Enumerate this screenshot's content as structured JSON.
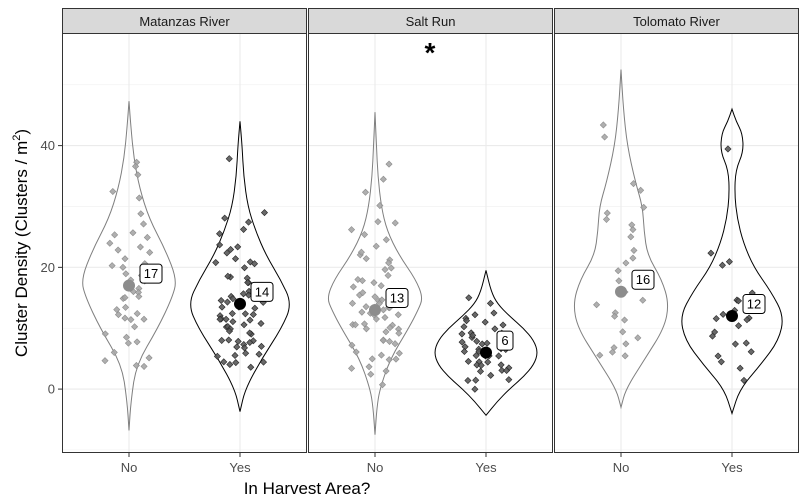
{
  "chart_data": {
    "type": "violin",
    "xlabel": "In Harvest Area?",
    "ylabel": "Cluster Density (Clusters / m",
    "ylabel_superscript": "2",
    "ylabel_close": ")",
    "ylim": [
      -10.5,
      58.5
    ],
    "yticks": [
      0,
      20,
      40
    ],
    "categories": [
      "No",
      "Yes"
    ],
    "grid": true,
    "colors": {
      "no": "#a6a6a6",
      "yes": "#4d4d4d",
      "strip_fill": "#d9d9d9"
    },
    "panels": [
      {
        "title": "Matanzas River",
        "significance": "",
        "groups": [
          {
            "category": "No",
            "median": 17,
            "label": "17",
            "violin": {
              "min": -6.8,
              "max": 47.3,
              "profile": [
                [
                  -6.8,
                  0
                ],
                [
                  -2,
                  0.04
                ],
                [
                  4,
                  0.15
                ],
                [
                  10,
                  0.6
                ],
                [
                  15,
                  0.9
                ],
                [
                  18,
                  1.0
                ],
                [
                  23,
                  0.75
                ],
                [
                  28,
                  0.42
                ],
                [
                  33,
                  0.22
                ],
                [
                  38,
                  0.1
                ],
                [
                  43,
                  0.04
                ],
                [
                  47.3,
                  0
                ]
              ]
            },
            "points": [
              37.5,
              36,
              35,
              32,
              31,
              29,
              27.5,
              26,
              25,
              24.5,
              24,
              23.5,
              23,
              22,
              21.5,
              21,
              20.5,
              20,
              19.5,
              19,
              18.5,
              18,
              17.5,
              17,
              16.5,
              16,
              15.5,
              15,
              14.5,
              14,
              13.5,
              13,
              12.5,
              12,
              11.5,
              11,
              10,
              9,
              8.5,
              8,
              7,
              6,
              5,
              4.5,
              4,
              3.5
            ]
          },
          {
            "category": "Yes",
            "median": 14,
            "label": "14",
            "violin": {
              "min": -3.7,
              "max": 44,
              "profile": [
                [
                  -3.7,
                  0
                ],
                [
                  0,
                  0.1
                ],
                [
                  5,
                  0.42
                ],
                [
                  10,
                  0.8
                ],
                [
                  14,
                  1.0
                ],
                [
                  18,
                  0.78
                ],
                [
                  22,
                  0.5
                ],
                [
                  26,
                  0.3
                ],
                [
                  30,
                  0.15
                ],
                [
                  35,
                  0.07
                ],
                [
                  40,
                  0.04
                ],
                [
                  44,
                  0
                ]
              ]
            },
            "points": [
              37.5,
              29,
              28,
              27,
              26,
              25,
              24,
              23,
              22.5,
              22,
              21.5,
              21,
              20.5,
              20,
              19.5,
              19,
              18.5,
              18,
              17.5,
              17,
              16.5,
              16,
              15.5,
              15,
              15,
              14.5,
              14.5,
              14,
              14,
              13.5,
              13.5,
              13,
              13,
              12.5,
              12.5,
              12,
              12,
              11.5,
              11.5,
              11,
              11,
              10.5,
              10.5,
              10,
              10,
              9.5,
              9.5,
              9,
              9,
              8.5,
              8.5,
              8,
              8,
              7.5,
              7.5,
              7,
              7,
              6.5,
              6,
              6,
              5.5,
              5,
              5,
              4.5,
              4,
              3.5,
              3
            ]
          }
        ]
      },
      {
        "title": "Salt Run",
        "significance": "*",
        "groups": [
          {
            "category": "No",
            "median": 13,
            "label": "13",
            "violin": {
              "min": -7.5,
              "max": 45.5,
              "profile": [
                [
                  -7.5,
                  0
                ],
                [
                  -3,
                  0.04
                ],
                [
                  0,
                  0.1
                ],
                [
                  5,
                  0.32
                ],
                [
                  10,
                  0.7
                ],
                [
                  13,
                  0.9
                ],
                [
                  15,
                  1.0
                ],
                [
                  18,
                  0.85
                ],
                [
                  22,
                  0.5
                ],
                [
                  26,
                  0.25
                ],
                [
                  30,
                  0.13
                ],
                [
                  35,
                  0.06
                ],
                [
                  40,
                  0.03
                ],
                [
                  45.5,
                  0
                ]
              ]
            },
            "points": [
              37,
              34,
              32,
              30,
              28,
              27,
              26,
              25,
              24,
              23,
              22.5,
              22,
              21.5,
              21,
              20.5,
              20,
              19.5,
              19,
              18.5,
              18,
              17.5,
              17,
              16.5,
              16,
              15.5,
              15,
              15,
              14.5,
              14.5,
              14,
              14,
              13.5,
              13.5,
              13,
              13,
              12.5,
              12.5,
              12,
              12,
              11.5,
              11.5,
              11,
              11,
              10.5,
              10.5,
              10,
              10,
              9.5,
              9,
              9,
              8.5,
              8,
              8,
              7.5,
              7,
              6.5,
              6,
              5.5,
              5,
              5,
              4.5,
              4,
              3.5,
              3,
              2,
              1
            ]
          },
          {
            "category": "Yes",
            "median": 6,
            "label": "6",
            "violin": {
              "min": -4.3,
              "max": 19.5,
              "profile": [
                [
                  -4.3,
                  0
                ],
                [
                  -2,
                  0.22
                ],
                [
                  0,
                  0.45
                ],
                [
                  2,
                  0.72
                ],
                [
                  4,
                  0.92
                ],
                [
                  6,
                  1.0
                ],
                [
                  8,
                  0.92
                ],
                [
                  10,
                  0.72
                ],
                [
                  12,
                  0.45
                ],
                [
                  14,
                  0.22
                ],
                [
                  16,
                  0.1
                ],
                [
                  19.5,
                  0
                ]
              ]
            },
            "points": [
              15.5,
              14,
              13,
              12.5,
              12,
              11.5,
              11,
              10.5,
              10,
              10,
              9.5,
              9,
              9,
              8.5,
              8.5,
              8,
              8,
              7.5,
              7.5,
              7,
              7,
              7,
              6.5,
              6.5,
              6,
              6,
              6,
              5.5,
              5.5,
              5,
              5,
              5,
              4.5,
              4.5,
              4,
              4,
              3.5,
              3.5,
              3,
              3,
              2.5,
              2,
              2,
              1.5,
              1,
              0.5
            ]
          }
        ]
      },
      {
        "title": "Tolomato River",
        "significance": "",
        "groups": [
          {
            "category": "No",
            "median": 16,
            "label": "16",
            "violin": {
              "min": -3,
              "max": 52.5,
              "profile": [
                [
                  -3,
                  0
                ],
                [
                  0,
                  0.1
                ],
                [
                  5,
                  0.5
                ],
                [
                  10,
                  0.9
                ],
                [
                  14,
                  1.0
                ],
                [
                  18,
                  0.85
                ],
                [
                  22,
                  0.55
                ],
                [
                  26,
                  0.48
                ],
                [
                  30,
                  0.45
                ],
                [
                  34,
                  0.3
                ],
                [
                  40,
                  0.13
                ],
                [
                  46,
                  0.05
                ],
                [
                  52.5,
                  0
                ]
              ]
            },
            "points": [
              43,
              42,
              34,
              33,
              30,
              29,
              28,
              27,
              26,
              24.5,
              23,
              22,
              21,
              20,
              19,
              18,
              17.5,
              16.5,
              15,
              14,
              13,
              12,
              11,
              10,
              9,
              8,
              7,
              6,
              5.5,
              5
            ]
          },
          {
            "category": "Yes",
            "median": 12,
            "label": "12",
            "violin": {
              "min": -4,
              "max": 46,
              "profile": [
                [
                  -4,
                  0
                ],
                [
                  0,
                  0.15
                ],
                [
                  4,
                  0.55
                ],
                [
                  8,
                  0.9
                ],
                [
                  12,
                  1.0
                ],
                [
                  16,
                  0.75
                ],
                [
                  20,
                  0.42
                ],
                [
                  24,
                  0.22
                ],
                [
                  28,
                  0.1
                ],
                [
                  32,
                  0.05
                ],
                [
                  36,
                  0.07
                ],
                [
                  39,
                  0.22
                ],
                [
                  42,
                  0.2
                ],
                [
                  44,
                  0.08
                ],
                [
                  46,
                  0
                ]
              ]
            },
            "points": [
              39,
              22,
              21,
              20,
              16,
              15,
              14.5,
              13.5,
              12.5,
              12,
              11.5,
              11,
              10,
              9,
              8.5,
              8,
              7.5,
              6,
              5,
              4,
              3,
              2
            ]
          }
        ]
      }
    ]
  }
}
